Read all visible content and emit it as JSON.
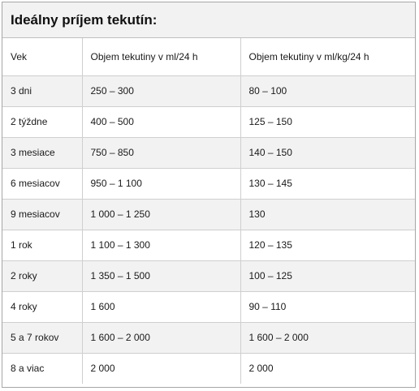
{
  "title": "Ideálny príjem tekutín:",
  "table": {
    "headers": [
      "Vek",
      "Objem tekutiny  v ml/24  h",
      "Objem tekutiny  v ml/kg/24  h"
    ],
    "rows": [
      [
        "3 dni",
        "250 – 300",
        "80 – 100"
      ],
      [
        "2 týždne",
        "400 – 500",
        "125 – 150"
      ],
      [
        "3 mesiace",
        "750 – 850",
        "140 – 150"
      ],
      [
        "6 mesiacov",
        "950 – 1 100",
        "130 – 145"
      ],
      [
        "9 mesiacov",
        "1 000 – 1 250",
        "130"
      ],
      [
        "1 rok",
        "1 100 – 1 300",
        "120 – 135"
      ],
      [
        "2 roky",
        "1 350 – 1 500",
        "100 – 125"
      ],
      [
        "4 roky",
        "1 600",
        "90 – 110"
      ],
      [
        "5 a 7 rokov",
        "1 600 – 2 000",
        "1 600 – 2 000"
      ],
      [
        "8 a viac",
        "2 000",
        "2 000"
      ]
    ]
  },
  "colors": {
    "shade": "#f2f2f2",
    "border": "#cfcfcf",
    "frame": "#a6a6a6"
  }
}
